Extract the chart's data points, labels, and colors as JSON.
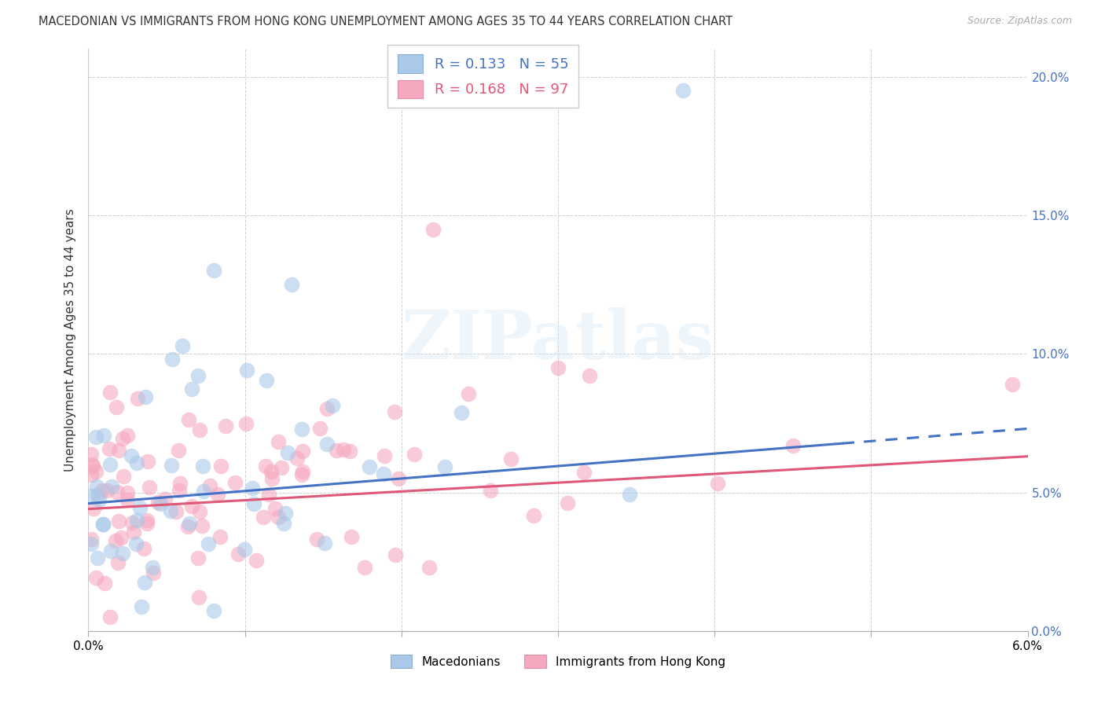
{
  "title": "MACEDONIAN VS IMMIGRANTS FROM HONG KONG UNEMPLOYMENT AMONG AGES 35 TO 44 YEARS CORRELATION CHART",
  "source": "Source: ZipAtlas.com",
  "ylabel": "Unemployment Among Ages 35 to 44 years",
  "legend_label1": "Macedonians",
  "legend_label2": "Immigrants from Hong Kong",
  "R1": 0.133,
  "N1": 55,
  "R2": 0.168,
  "N2": 97,
  "color1": "#aac8e8",
  "color2": "#f5a8be",
  "line_color1": "#4472c4",
  "line_color2": "#e05878",
  "right_axis_color": "#4472c4",
  "xlim": [
    0.0,
    0.06
  ],
  "ylim": [
    0.0,
    0.21
  ],
  "watermark": "ZIPatlas"
}
